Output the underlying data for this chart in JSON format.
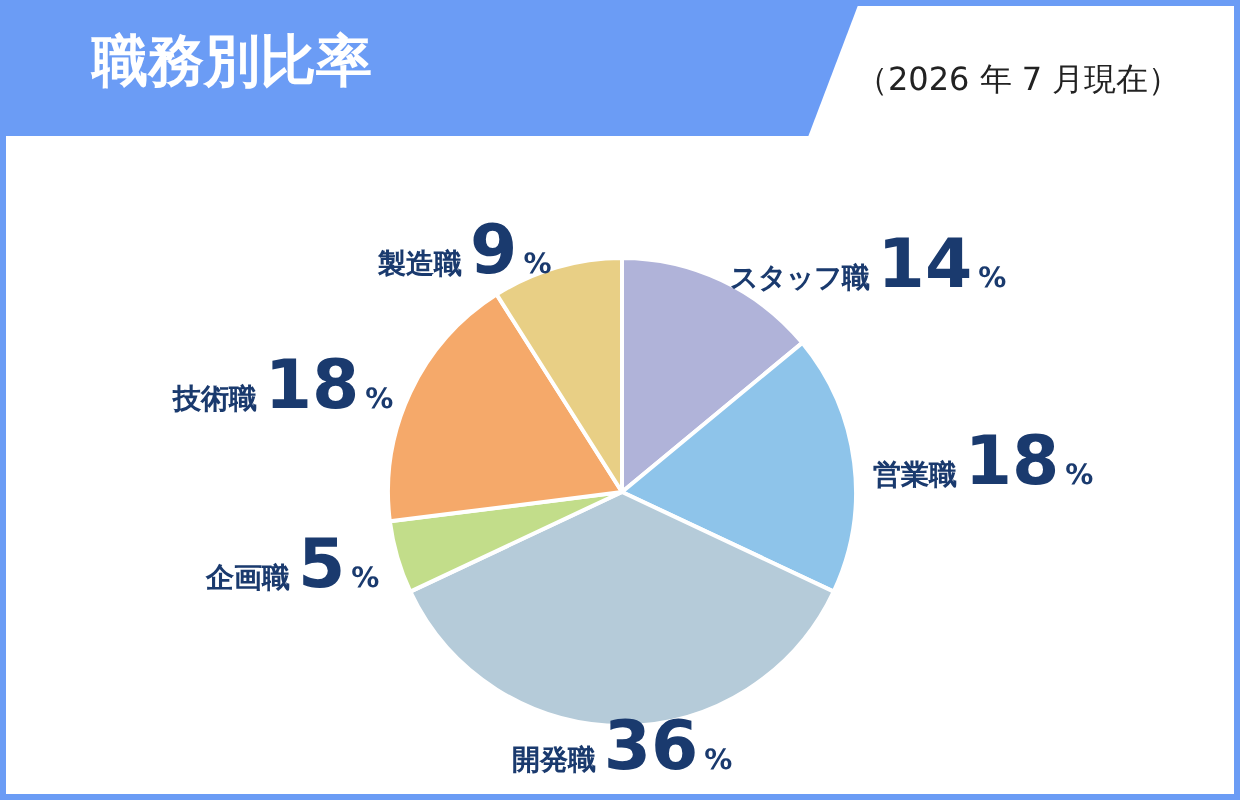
{
  "chart_data": {
    "type": "pie",
    "title": "職務別比率",
    "subtitle": "（2026 年 7 月現在）",
    "categories": [
      "スタッフ職",
      "営業職",
      "開発職",
      "企画職",
      "技術職",
      "製造職"
    ],
    "values": [
      14,
      18,
      36,
      5,
      18,
      9
    ],
    "value_labels": [
      "14%",
      "18%",
      "36%",
      "5%",
      "18%",
      "9%"
    ],
    "colors": [
      "#b0b3d9",
      "#8ec4ea",
      "#b5cbd9",
      "#c2dd8a",
      "#f5a96a",
      "#e8cf85"
    ],
    "legend": false
  }
}
